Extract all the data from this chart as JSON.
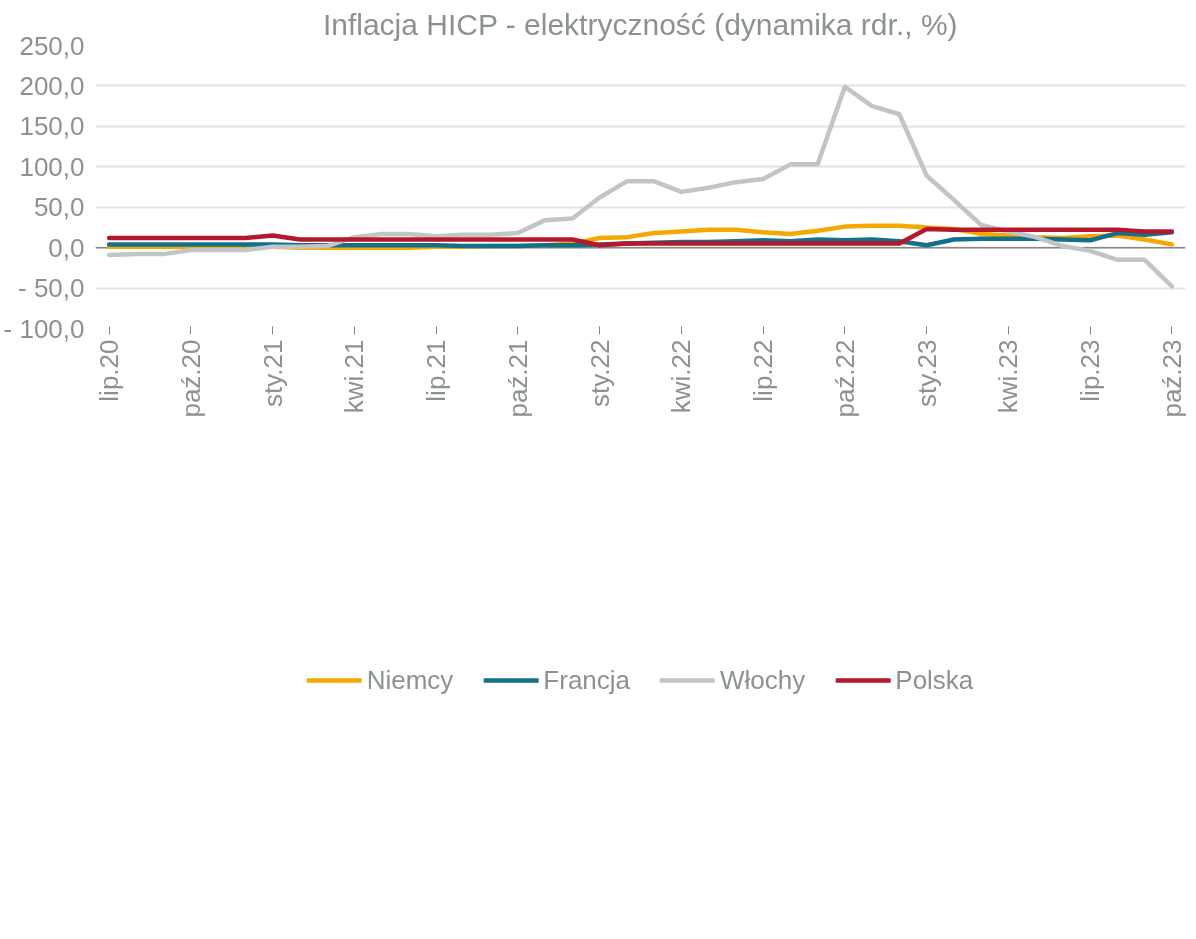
{
  "chart_data": {
    "type": "line",
    "title": "Inflacja HICP - elektryczność (dynamika rdr., %)",
    "categories": [
      "lip.20",
      null,
      null,
      "paź.20",
      null,
      null,
      "sty.21",
      null,
      null,
      "kwi.21",
      null,
      null,
      "lip.21",
      null,
      null,
      "paź.21",
      null,
      null,
      "sty.22",
      null,
      null,
      "kwi.22",
      null,
      null,
      "lip.22",
      null,
      null,
      "paź.22",
      null,
      null,
      "sty.23",
      null,
      null,
      "kwi.23",
      null,
      null,
      "lip.23",
      null,
      null,
      "paź.23"
    ],
    "series": [
      {
        "name": "Niemcy",
        "color": "#f5a800",
        "values": [
          1,
          1,
          1,
          1,
          1,
          1,
          1,
          0,
          0,
          0,
          0,
          0,
          1,
          1,
          2,
          2,
          3,
          5,
          12,
          13,
          18,
          20,
          22,
          22,
          19,
          17,
          21,
          26,
          27,
          27,
          25,
          23,
          17,
          15,
          13,
          12,
          14,
          15,
          10,
          4
        ]
      },
      {
        "name": "Francja",
        "color": "#13708c",
        "values": [
          4,
          4,
          4,
          4,
          4,
          4,
          4,
          3,
          3,
          3,
          3,
          3,
          3,
          2,
          2,
          2,
          3,
          3,
          4,
          5,
          6,
          7,
          7,
          8,
          9,
          8,
          10,
          9,
          10,
          8,
          3,
          10,
          11,
          11,
          11,
          10,
          9,
          18,
          16,
          19
        ]
      },
      {
        "name": "Włochy",
        "color": "#c1c5c5",
        "values": [
          -9,
          -8,
          -8,
          -3,
          -3,
          -3,
          1,
          1,
          2,
          13,
          17,
          17,
          14,
          16,
          16,
          18,
          34,
          36,
          62,
          82,
          82,
          69,
          74,
          81,
          85,
          103,
          103,
          199,
          175,
          165,
          89,
          59,
          28,
          20,
          13,
          2,
          -4,
          -15,
          -15,
          -48
        ]
      },
      {
        "name": "Polska",
        "color": "#b5182b",
        "values": [
          12,
          12,
          12,
          12,
          12,
          12,
          15,
          10,
          10,
          10,
          10,
          10,
          10,
          10,
          10,
          10,
          10,
          10,
          3,
          5,
          5,
          5,
          5,
          5,
          5,
          5,
          5,
          5,
          5,
          5,
          23,
          22,
          22,
          22,
          22,
          22,
          22,
          22,
          20,
          20
        ]
      }
    ],
    "ylim": [
      -100,
      250
    ],
    "yticks": [
      {
        "value": -100,
        "label": "- 100,0"
      },
      {
        "value": -50,
        "label": "- 50,0"
      },
      {
        "value": 0,
        "label": "0,0"
      },
      {
        "value": 50,
        "label": "50,0"
      },
      {
        "value": 100,
        "label": "100,0"
      },
      {
        "value": 150,
        "label": "150,0"
      },
      {
        "value": 200,
        "label": "200,0"
      },
      {
        "value": 250,
        "label": "250,0"
      }
    ],
    "grid": "y",
    "legend": "bottom",
    "line_style": "solid"
  }
}
